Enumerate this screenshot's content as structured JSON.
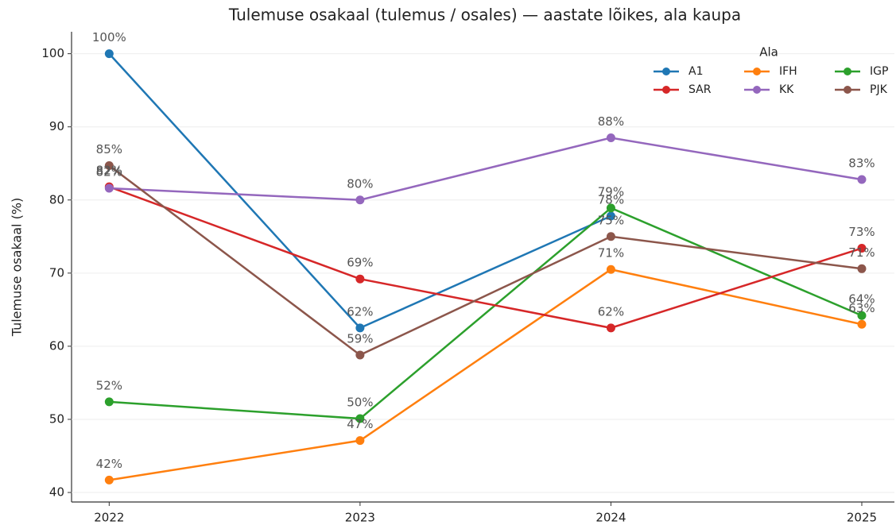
{
  "chart_data": {
    "type": "line",
    "title": "Tulemuse osakaal (tulemus / osales) — aastate lõikes, ala kaupa",
    "y_label": "Tulemuse osakaal (%)",
    "x": [
      2022,
      2023,
      2024,
      2025
    ],
    "xlim": [
      2021.85,
      2025.13
    ],
    "xticks": [
      2022,
      2023,
      2024,
      2025
    ],
    "ylim": [
      38.7,
      103
    ],
    "yticks": [
      40,
      50,
      60,
      70,
      80,
      90,
      100
    ],
    "grid": true,
    "legend": {
      "title": "Ala",
      "position": "upper right",
      "columns": 3
    },
    "series": [
      {
        "name": "A1",
        "color": "#1f77b4",
        "values": [
          100,
          62.5,
          77.8,
          null
        ],
        "value_labels": [
          "100%",
          "62%",
          "78%",
          null
        ]
      },
      {
        "name": "IFH",
        "color": "#ff7f0e",
        "values": [
          41.7,
          47.1,
          70.5,
          63.0
        ],
        "value_labels": [
          "42%",
          "47%",
          "71%",
          "63%"
        ]
      },
      {
        "name": "IGP",
        "color": "#2ca02c",
        "values": [
          52.4,
          50.1,
          78.9,
          64.2
        ],
        "value_labels": [
          "52%",
          "50%",
          "79%",
          "64%"
        ]
      },
      {
        "name": "SAR",
        "color": "#d62728",
        "values": [
          81.8,
          69.2,
          62.5,
          73.4
        ],
        "value_labels": [
          "82%",
          "69%",
          "62%",
          "73%"
        ]
      },
      {
        "name": "KK",
        "color": "#9467bd",
        "values": [
          81.6,
          80.0,
          88.5,
          82.8
        ],
        "value_labels": [
          "82%",
          "80%",
          "88%",
          "83%"
        ]
      },
      {
        "name": "PJK",
        "color": "#8c564b",
        "values": [
          84.7,
          58.8,
          75.0,
          70.6
        ],
        "value_labels": [
          "85%",
          "59%",
          "75%",
          "71%"
        ]
      }
    ]
  }
}
